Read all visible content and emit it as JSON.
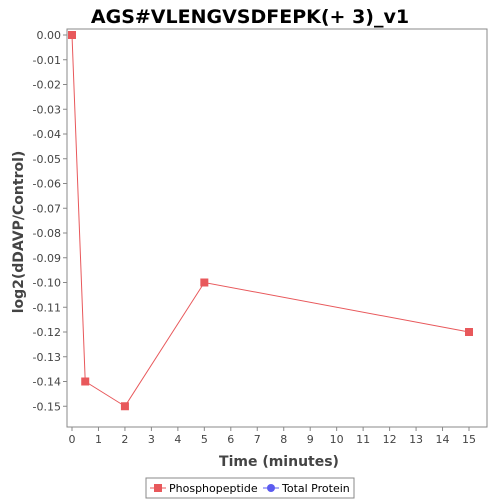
{
  "chart_data": {
    "type": "line",
    "title": "AGS#VLENGVSDFEPK(+ 3)_v1",
    "xlabel": "Time (minutes)",
    "ylabel": "log2(dDAVP/Control)",
    "xlim": [
      0,
      15.6
    ],
    "ylim": [
      -0.16,
      0.0
    ],
    "x_ticks": [
      0,
      1,
      2,
      3,
      4,
      5,
      6,
      7,
      8,
      9,
      10,
      11,
      12,
      13,
      14,
      15
    ],
    "y_ticks": [
      0.0,
      -0.01,
      -0.02,
      -0.03,
      -0.04,
      -0.05,
      -0.06,
      -0.07,
      -0.08,
      -0.09,
      -0.1,
      -0.11,
      -0.12,
      -0.13,
      -0.14,
      -0.15
    ],
    "y_tick_labels": [
      "0.00",
      "-0.01",
      "-0.02",
      "-0.03",
      "-0.04",
      "-0.05",
      "-0.06",
      "-0.07",
      "-0.08",
      "-0.09",
      "-0.10",
      "-0.11",
      "-0.12",
      "-0.13",
      "-0.14",
      "-0.15"
    ],
    "grid": false,
    "legend_position": "bottom",
    "series": [
      {
        "name": "Phosphopeptide",
        "color": "#e8585b",
        "marker": "square",
        "x": [
          0,
          0.5,
          2,
          5,
          15
        ],
        "y": [
          0.0,
          -0.14,
          -0.15,
          -0.1,
          -0.12
        ]
      },
      {
        "name": "Total Protein",
        "color": "#5b5bf0",
        "marker": "circle",
        "x": [],
        "y": []
      }
    ]
  }
}
